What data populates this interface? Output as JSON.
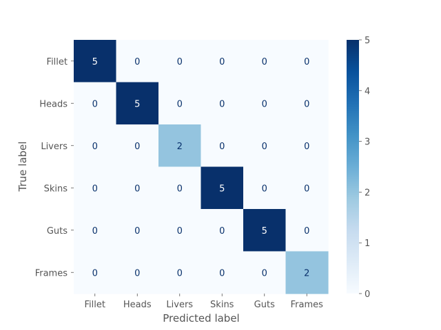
{
  "chart_data": {
    "type": "heatmap",
    "title": "",
    "xlabel": "Predicted label",
    "ylabel": "True label",
    "x_categories": [
      "Fillet",
      "Heads",
      "Livers",
      "Skins",
      "Guts",
      "Frames"
    ],
    "y_categories": [
      "Fillet",
      "Heads",
      "Livers",
      "Skins",
      "Guts",
      "Frames"
    ],
    "values": [
      [
        5,
        0,
        0,
        0,
        0,
        0
      ],
      [
        0,
        5,
        0,
        0,
        0,
        0
      ],
      [
        0,
        0,
        2,
        0,
        0,
        0
      ],
      [
        0,
        0,
        0,
        5,
        0,
        0
      ],
      [
        0,
        0,
        0,
        0,
        5,
        0
      ],
      [
        0,
        0,
        0,
        0,
        0,
        2
      ]
    ],
    "colormap": "Blues",
    "vmin": 0,
    "vmax": 5,
    "colorbar_ticks": [
      "0",
      "1",
      "2",
      "3",
      "4",
      "5"
    ],
    "grid": false,
    "colorbar_position": "right"
  }
}
